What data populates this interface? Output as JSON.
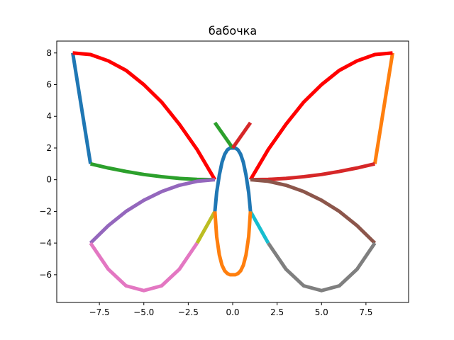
{
  "chart_data": {
    "type": "line",
    "title": "бабочка",
    "xlabel": "",
    "ylabel": "",
    "xlim": [
      -9.9,
      9.9
    ],
    "ylim": [
      -7.75,
      8.75
    ],
    "grid": false,
    "legend": "none",
    "x_ticks": [
      -7.5,
      -5.0,
      -2.5,
      0.0,
      2.5,
      5.0,
      7.5
    ],
    "x_tick_labels": [
      "−7.5",
      "−5.0",
      "−2.5",
      "0.0",
      "2.5",
      "5.0",
      "7.5"
    ],
    "y_ticks": [
      -6,
      -4,
      -2,
      0,
      2,
      4,
      6,
      8
    ],
    "y_tick_labels": [
      "−6",
      "−4",
      "−2",
      "0",
      "2",
      "4",
      "6",
      "8"
    ],
    "series": [
      {
        "color": "#1f77b4",
        "x": [
          -9,
          -8
        ],
        "y": [
          8,
          1
        ]
      },
      {
        "color": "#ff7f0e",
        "x": [
          9,
          8
        ],
        "y": [
          8,
          1
        ]
      },
      {
        "color": "#2ca02c",
        "x": [
          -8,
          -7,
          -6,
          -5,
          -4,
          -3,
          -2,
          -1
        ],
        "y": [
          1,
          0.74,
          0.52,
          0.33,
          0.19,
          0.08,
          0.02,
          0
        ]
      },
      {
        "color": "#d62728",
        "x": [
          8,
          7,
          6,
          5,
          4,
          3,
          2,
          1
        ],
        "y": [
          1,
          0.74,
          0.52,
          0.33,
          0.19,
          0.08,
          0.02,
          0
        ]
      },
      {
        "color": "#ff0000",
        "x": [
          -9,
          -8,
          -7,
          -6,
          -5,
          -4,
          -3,
          -2,
          -1
        ],
        "y": [
          8,
          7.9,
          7.5,
          6.9,
          6,
          4.9,
          3.5,
          1.9,
          0
        ]
      },
      {
        "color": "#ff0000",
        "x": [
          9,
          8,
          7,
          6,
          5,
          4,
          3,
          2,
          1
        ],
        "y": [
          8,
          7.9,
          7.5,
          6.9,
          6,
          4.9,
          3.5,
          1.9,
          0
        ]
      },
      {
        "color": "#9467bd",
        "x": [
          -8,
          -7,
          -6,
          -5,
          -4,
          -3,
          -2,
          -1
        ],
        "y": [
          -4,
          -2.9,
          -2,
          -1.3,
          -0.75,
          -0.35,
          -0.1,
          0
        ]
      },
      {
        "color": "#8c564b",
        "x": [
          8,
          7,
          6,
          5,
          4,
          3,
          2,
          1
        ],
        "y": [
          -4,
          -2.9,
          -2,
          -1.3,
          -0.75,
          -0.35,
          -0.1,
          0
        ]
      },
      {
        "color": "#e377c2",
        "x": [
          -8,
          -7,
          -6,
          -5,
          -4,
          -3,
          -2
        ],
        "y": [
          -4,
          -5.65,
          -6.7,
          -7,
          -6.7,
          -5.65,
          -4
        ]
      },
      {
        "color": "#7f7f7f",
        "x": [
          8,
          7,
          6,
          5,
          4,
          3,
          2
        ],
        "y": [
          -4,
          -5.65,
          -6.7,
          -7,
          -6.7,
          -5.65,
          -4
        ]
      },
      {
        "color": "#bcbd22",
        "x": [
          -2,
          -1
        ],
        "y": [
          -4,
          -2
        ]
      },
      {
        "color": "#17becf",
        "x": [
          2,
          1
        ],
        "y": [
          -4,
          -2
        ]
      },
      {
        "color": "#1f77b4",
        "x": [
          -1,
          -0.9,
          -0.75,
          -0.6,
          -0.45,
          -0.3,
          -0.15,
          0,
          0.15,
          0.3,
          0.45,
          0.6,
          0.75,
          0.9,
          1
        ],
        "y": [
          -2,
          -0.8,
          0.3,
          1.1,
          1.6,
          1.88,
          2,
          2,
          2,
          1.88,
          1.6,
          1.1,
          0.3,
          -0.8,
          -2
        ]
      },
      {
        "color": "#ff7f0e",
        "x": [
          -1,
          -0.9,
          -0.75,
          -0.6,
          -0.45,
          -0.3,
          -0.15,
          0,
          0.15,
          0.3,
          0.45,
          0.6,
          0.75,
          0.9,
          1
        ],
        "y": [
          -2,
          -3.6,
          -4.75,
          -5.4,
          -5.75,
          -5.92,
          -6,
          -6,
          -6,
          -5.92,
          -5.75,
          -5.4,
          -4.75,
          -3.6,
          -2
        ]
      },
      {
        "color": "#2ca02c",
        "x": [
          -1,
          0
        ],
        "y": [
          3.6,
          2
        ]
      },
      {
        "color": "#d62728",
        "x": [
          0,
          1
        ],
        "y": [
          2,
          3.6
        ]
      }
    ]
  }
}
